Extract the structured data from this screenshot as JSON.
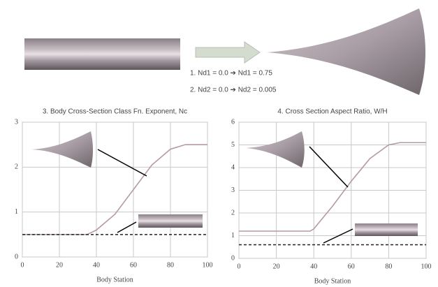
{
  "header": {
    "lines": [
      "1. Nd1 = 0.0 ➔ Nd1 = 0.75",
      "2. Nd2 = 0.0 ➔ Nd2 = 0.005"
    ]
  },
  "chart_data": [
    {
      "type": "line",
      "title": "3. Body Cross-Section Class Fn. Exponent, Nc",
      "x_label": "Body Station",
      "x": [
        0,
        35,
        40,
        50,
        60,
        70,
        80,
        88,
        100
      ],
      "series": [
        {
          "color": "#b49aa8",
          "dash": false,
          "values": [
            0.5,
            0.5,
            0.6,
            0.95,
            1.5,
            2.05,
            2.4,
            2.5,
            2.5
          ]
        },
        {
          "color": "#222222",
          "dash": true,
          "values": [
            0.5,
            0.5,
            0.5,
            0.5,
            0.5,
            0.5,
            0.5,
            0.5,
            0.5
          ]
        }
      ],
      "xlim": [
        0,
        100
      ],
      "xticks": [
        0,
        20,
        40,
        60,
        80,
        100
      ],
      "ylim": [
        0,
        3
      ],
      "yticks": [
        0,
        1,
        2,
        3
      ],
      "grid": true
    },
    {
      "type": "line",
      "title": "4. Cross Section Aspect Ratio, W/H",
      "x_label": "Body Station",
      "x": [
        0,
        38,
        40,
        50,
        60,
        70,
        80,
        86,
        100
      ],
      "series": [
        {
          "color": "#b49aa8",
          "dash": false,
          "values": [
            1.2,
            1.2,
            1.3,
            2.3,
            3.4,
            4.4,
            5.0,
            5.1,
            5.1
          ]
        },
        {
          "color": "#222222",
          "dash": true,
          "values": [
            0.6,
            0.6,
            0.6,
            0.6,
            0.6,
            0.6,
            0.6,
            0.6,
            0.6
          ]
        }
      ],
      "xlim": [
        0,
        100
      ],
      "xticks": [
        0,
        20,
        40,
        60,
        80,
        100
      ],
      "ylim": [
        0,
        6
      ],
      "yticks": [
        0,
        1,
        2,
        3,
        4,
        5,
        6
      ],
      "grid": true
    }
  ]
}
